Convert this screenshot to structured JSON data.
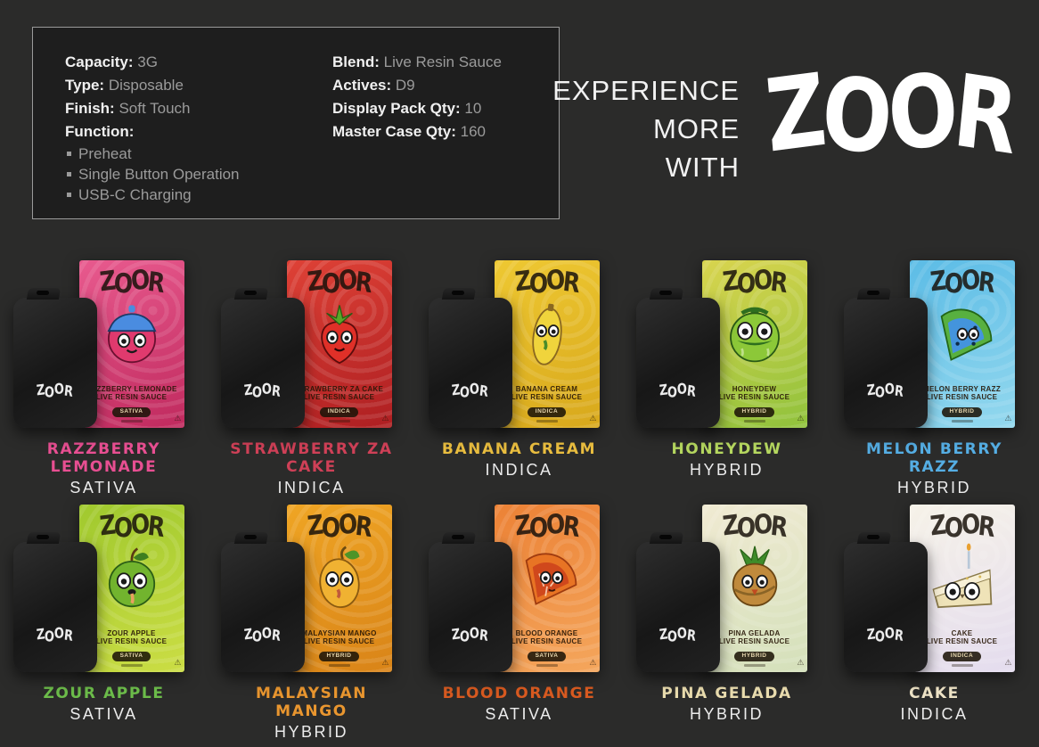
{
  "brand": "ZOOR",
  "box_line2": "LIVE RESIN SAUCE",
  "warning_icon": "⚠",
  "header": {
    "tagline_lines": [
      "EXPERIENCE",
      "MORE",
      "WITH"
    ]
  },
  "specs": {
    "left": [
      {
        "label": "Capacity:",
        "value": "3G"
      },
      {
        "label": "Type:",
        "value": "Disposable"
      },
      {
        "label": "Finish:",
        "value": "Soft Touch"
      }
    ],
    "function_label": "Function:",
    "function_items": [
      "Preheat",
      "Single Button Operation",
      "USB-C Charging"
    ],
    "right": [
      {
        "label": "Blend:",
        "value": "Live Resin Sauce"
      },
      {
        "label": "Actives:",
        "value": "D9"
      },
      {
        "label": "Display Pack Qty:",
        "value": "10"
      },
      {
        "label": "Master Case Qty:",
        "value": "160"
      }
    ]
  },
  "products": [
    {
      "flavor": "RAZZBERRY LEMONADE",
      "strain": "SATIVA",
      "label_color": "#e84f92",
      "box_colors": [
        "#e85a8e",
        "#c02a5e"
      ],
      "character": {
        "type": "raspberry",
        "body": "#e03a6e",
        "accent": "#4a8ce0"
      }
    },
    {
      "flavor": "STRAWBERRY ZA CAKE",
      "strain": "INDICA",
      "label_color": "#cf4057",
      "box_colors": [
        "#de4136",
        "#ae1f22"
      ],
      "character": {
        "type": "strawberry",
        "body": "#e03028",
        "accent": "#58a828"
      }
    },
    {
      "flavor": "BANANA CREAM",
      "strain": "INDICA",
      "label_color": "#e9bd3f",
      "box_colors": [
        "#eec832",
        "#d8a81c"
      ],
      "character": {
        "type": "banana",
        "body": "#f0d43c",
        "accent": "#8a6820"
      }
    },
    {
      "flavor": "HONEYDEW",
      "strain": "HYBRID",
      "label_color": "#b5d75f",
      "box_colors": [
        "#d8d44e",
        "#90c23c"
      ],
      "character": {
        "type": "honeydew",
        "body": "#8cc838",
        "accent": "#2e6e1e"
      }
    },
    {
      "flavor": "MELON BERRY RAZZ",
      "strain": "HYBRID",
      "label_color": "#55aee4",
      "box_colors": [
        "#5cbce6",
        "#93d8ee"
      ],
      "character": {
        "type": "melon",
        "body": "#58b040",
        "accent": "#4494dc"
      }
    },
    {
      "flavor": "ZOUR APPLE",
      "strain": "SATIVA",
      "label_color": "#6cbc4a",
      "box_colors": [
        "#a0c92e",
        "#cbdd44"
      ],
      "character": {
        "type": "apple",
        "body": "#72b42e",
        "accent": "#3e7e20"
      }
    },
    {
      "flavor": "MALAYSIAN MANGO",
      "strain": "HYBRID",
      "label_color": "#e9962f",
      "box_colors": [
        "#efa524",
        "#d98418"
      ],
      "character": {
        "type": "mango",
        "body": "#f0b232",
        "accent": "#4e9428"
      }
    },
    {
      "flavor": "BLOOD ORANGE",
      "strain": "SATIVA",
      "label_color": "#d85a20",
      "box_colors": [
        "#ec8236",
        "#f4a65c"
      ],
      "character": {
        "type": "orange",
        "body": "#e87424",
        "accent": "#d0481c"
      }
    },
    {
      "flavor": "PINA GELADA",
      "strain": "HYBRID",
      "label_color": "#e9dcae",
      "box_colors": [
        "#f0ead2",
        "#d4e0ba"
      ],
      "character": {
        "type": "pineapple",
        "body": "#c08a3c",
        "accent": "#3e8c2a"
      }
    },
    {
      "flavor": "CAKE",
      "strain": "INDICA",
      "label_color": "#eee3c6",
      "box_colors": [
        "#f6f2e8",
        "#e4dcee"
      ],
      "character": {
        "type": "cake",
        "body": "#efe3b8",
        "accent": "#d8b858"
      }
    }
  ]
}
